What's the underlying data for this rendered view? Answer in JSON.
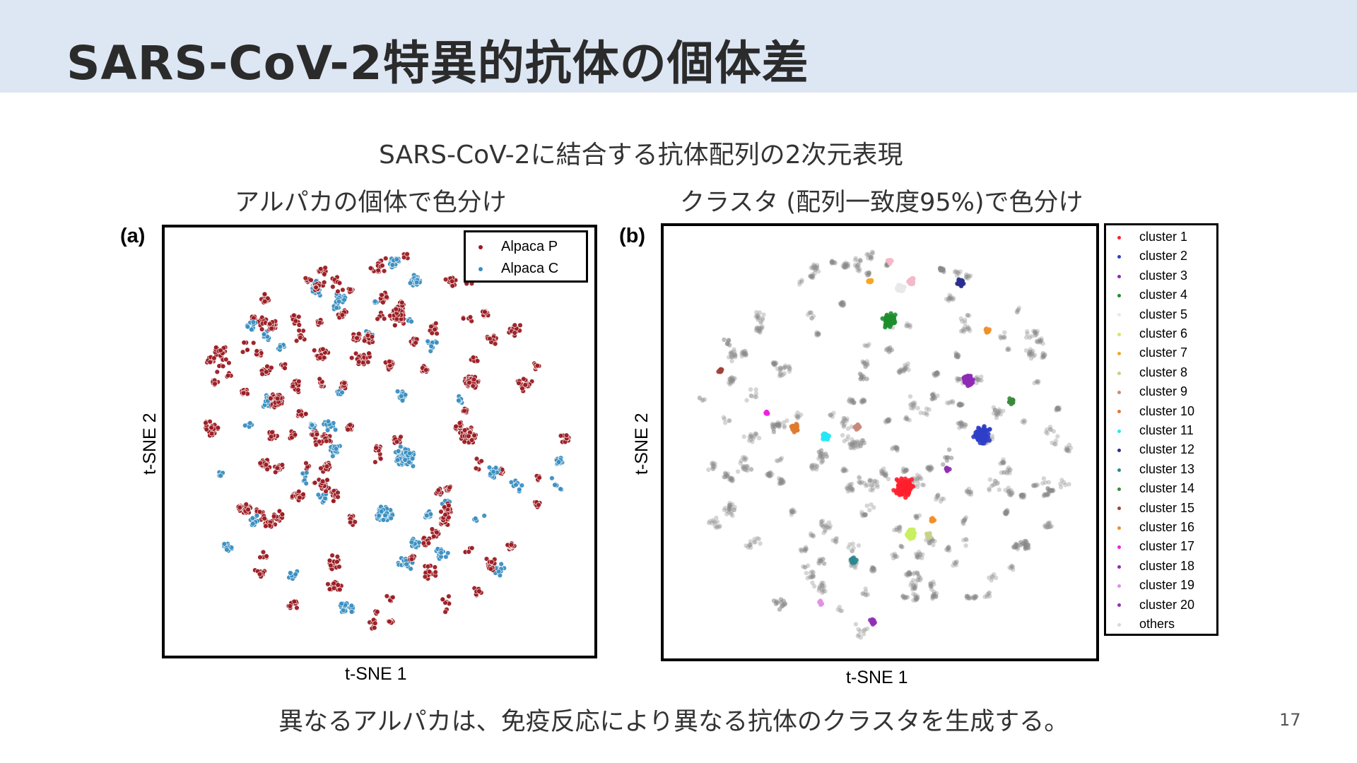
{
  "slide": {
    "title": "SARS-CoV-2特異的抗体の個体差",
    "main_caption": "SARS-CoV-2に結合する抗体配列の2次元表現",
    "subtitle_left": "アルパカの個体で色分け",
    "subtitle_right": "クラスタ (配列一致度95%)で色分け",
    "bottom_caption": "異なるアルパカは、免疫反応により異なる抗体のクラスタを生成する。",
    "page_number": "17",
    "header_color": "#dde6f3"
  },
  "chart_data": [
    {
      "type": "scatter",
      "panel_label": "(a)",
      "xlabel": "t-SNE 1",
      "ylabel": "t-SNE 2",
      "legend_position": "top-right",
      "series": [
        {
          "name": "Alpaca P",
          "color": "#9b1c22"
        },
        {
          "name": "Alpaca C",
          "color": "#3a8fc1"
        }
      ]
    },
    {
      "type": "scatter",
      "panel_label": "(b)",
      "xlabel": "t-SNE 1",
      "ylabel": "t-SNE 2",
      "legend_position": "outside-right",
      "series": [
        {
          "name": "cluster 1",
          "color": "#ff1f2e"
        },
        {
          "name": "cluster 2",
          "color": "#2f3ec8"
        },
        {
          "name": "cluster 3",
          "color": "#8e2bb5"
        },
        {
          "name": "cluster 4",
          "color": "#1e8e2e"
        },
        {
          "name": "cluster 5",
          "color": "#e8e8e8"
        },
        {
          "name": "cluster 6",
          "color": "#c8f060"
        },
        {
          "name": "cluster 7",
          "color": "#f5a623"
        },
        {
          "name": "cluster 8",
          "color": "#c8d08a"
        },
        {
          "name": "cluster 9",
          "color": "#c98a7a"
        },
        {
          "name": "cluster 10",
          "color": "#e07a30"
        },
        {
          "name": "cluster 11",
          "color": "#29e6f5"
        },
        {
          "name": "cluster 12",
          "color": "#2a2f8e"
        },
        {
          "name": "cluster 13",
          "color": "#2a8a8e"
        },
        {
          "name": "cluster 14",
          "color": "#3b8a3b"
        },
        {
          "name": "cluster 15",
          "color": "#a0423a"
        },
        {
          "name": "cluster 16",
          "color": "#f0902a"
        },
        {
          "name": "cluster 17",
          "color": "#f020e0"
        },
        {
          "name": "cluster 18",
          "color": "#8e30b0"
        },
        {
          "name": "cluster 19",
          "color": "#e090e8"
        },
        {
          "name": "cluster 20",
          "color": "#9030b8"
        },
        {
          "name": "others",
          "color": "#d8d8d8"
        }
      ]
    }
  ]
}
